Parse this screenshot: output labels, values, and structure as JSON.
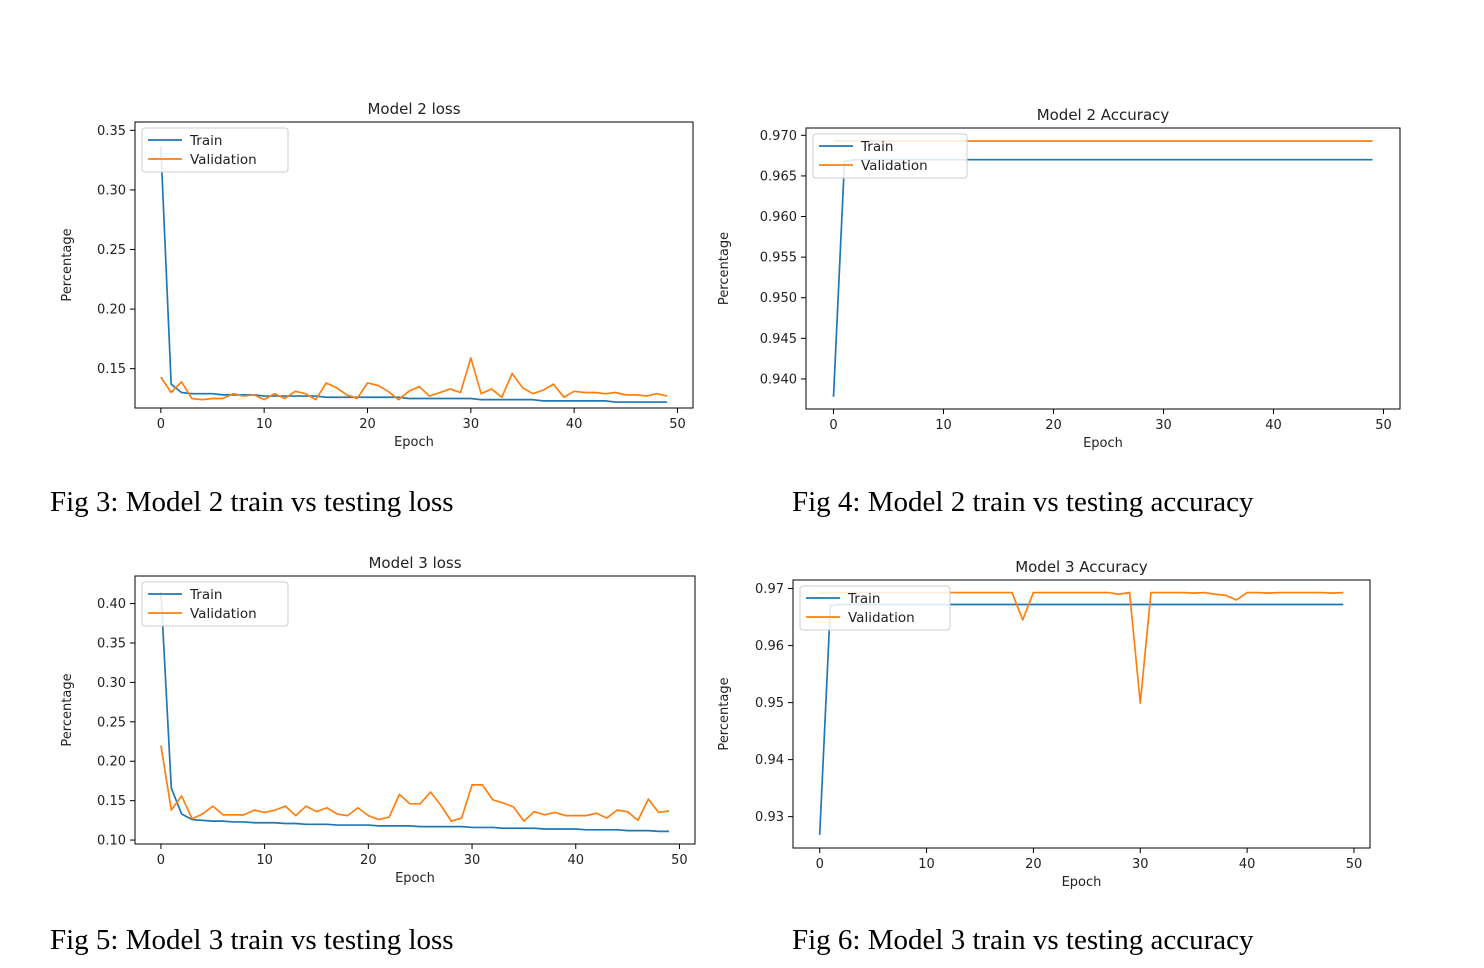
{
  "captions": {
    "fig3": "Fig 3: Model 2 train vs testing loss",
    "fig4": "Fig 4: Model 2 train vs testing accuracy",
    "fig5": "Fig 5: Model 3 train vs testing loss",
    "fig6": "Fig 6: Model 3 train vs testing accuracy"
  },
  "chart_data": [
    {
      "type": "line",
      "title": "Model 2 loss",
      "xlabel": "Epoch",
      "ylabel": "Percentage",
      "xlim": [
        -2.5,
        51.5
      ],
      "ylim": [
        0.117,
        0.357
      ],
      "xticks": [
        0,
        10,
        20,
        30,
        40,
        50
      ],
      "yticks": [
        0.15,
        0.2,
        0.25,
        0.3,
        0.35
      ],
      "ytick_labels": [
        "0.15",
        "0.20",
        "0.25",
        "0.30",
        "0.35"
      ],
      "legend": "upper-left",
      "grid": false,
      "colors": [
        "#1f77b4",
        "#ff7f0e"
      ],
      "series": [
        {
          "name": "Train",
          "values": [
            0.336,
            0.137,
            0.13,
            0.129,
            0.129,
            0.129,
            0.128,
            0.128,
            0.128,
            0.128,
            0.127,
            0.127,
            0.127,
            0.127,
            0.127,
            0.127,
            0.126,
            0.126,
            0.126,
            0.126,
            0.126,
            0.126,
            0.126,
            0.126,
            0.125,
            0.125,
            0.125,
            0.125,
            0.125,
            0.125,
            0.125,
            0.124,
            0.124,
            0.124,
            0.124,
            0.124,
            0.124,
            0.123,
            0.123,
            0.123,
            0.123,
            0.123,
            0.123,
            0.123,
            0.122,
            0.122,
            0.122,
            0.122,
            0.122,
            0.122
          ]
        },
        {
          "name": "Validation",
          "values": [
            0.143,
            0.13,
            0.139,
            0.125,
            0.124,
            0.125,
            0.125,
            0.129,
            0.127,
            0.128,
            0.124,
            0.129,
            0.125,
            0.131,
            0.129,
            0.124,
            0.138,
            0.134,
            0.128,
            0.125,
            0.138,
            0.136,
            0.131,
            0.124,
            0.131,
            0.135,
            0.127,
            0.13,
            0.133,
            0.13,
            0.159,
            0.129,
            0.133,
            0.126,
            0.146,
            0.134,
            0.129,
            0.132,
            0.137,
            0.126,
            0.131,
            0.13,
            0.13,
            0.129,
            0.13,
            0.128,
            0.128,
            0.127,
            0.129,
            0.127
          ]
        }
      ]
    },
    {
      "type": "line",
      "title": "Model 2 Accuracy",
      "xlabel": "Epoch",
      "ylabel": "Percentage",
      "xlim": [
        -2.5,
        51.5
      ],
      "ylim": [
        0.9363,
        0.9709
      ],
      "xticks": [
        0,
        10,
        20,
        30,
        40,
        50
      ],
      "yticks": [
        0.94,
        0.945,
        0.95,
        0.955,
        0.96,
        0.965,
        0.97
      ],
      "ytick_labels": [
        "0.940",
        "0.945",
        "0.950",
        "0.955",
        "0.960",
        "0.965",
        "0.970"
      ],
      "legend": "upper-left",
      "grid": false,
      "colors": [
        "#1f77b4",
        "#ff7f0e"
      ],
      "series": [
        {
          "name": "Train",
          "values": [
            0.9378,
            0.9668,
            0.967,
            0.967,
            0.967,
            0.967,
            0.967,
            0.967,
            0.967,
            0.967,
            0.967,
            0.967,
            0.967,
            0.967,
            0.967,
            0.967,
            0.967,
            0.967,
            0.967,
            0.967,
            0.967,
            0.967,
            0.967,
            0.967,
            0.967,
            0.967,
            0.967,
            0.967,
            0.967,
            0.967,
            0.967,
            0.967,
            0.967,
            0.967,
            0.967,
            0.967,
            0.967,
            0.967,
            0.967,
            0.967,
            0.967,
            0.967,
            0.967,
            0.967,
            0.967,
            0.967,
            0.967,
            0.967,
            0.967,
            0.967
          ]
        },
        {
          "name": "Validation",
          "values": [
            0.9693,
            0.9693,
            0.9693,
            0.9693,
            0.9693,
            0.9693,
            0.9693,
            0.9693,
            0.9693,
            0.9693,
            0.9693,
            0.9693,
            0.9693,
            0.9693,
            0.9693,
            0.9693,
            0.9693,
            0.9693,
            0.9693,
            0.9693,
            0.9693,
            0.9693,
            0.9693,
            0.9693,
            0.9693,
            0.9693,
            0.9693,
            0.9693,
            0.9693,
            0.9693,
            0.9693,
            0.9693,
            0.9693,
            0.9693,
            0.9693,
            0.9693,
            0.9693,
            0.9693,
            0.9693,
            0.9693,
            0.9693,
            0.9693,
            0.9693,
            0.9693,
            0.9693,
            0.9693,
            0.9693,
            0.9693,
            0.9693,
            0.9693
          ]
        }
      ]
    },
    {
      "type": "line",
      "title": "Model 3 loss",
      "xlabel": "Epoch",
      "ylabel": "Percentage",
      "xlim": [
        -2.5,
        51.5
      ],
      "ylim": [
        0.095,
        0.435
      ],
      "xticks": [
        0,
        10,
        20,
        30,
        40,
        50
      ],
      "yticks": [
        0.1,
        0.15,
        0.2,
        0.25,
        0.3,
        0.35,
        0.4
      ],
      "ytick_labels": [
        "0.10",
        "0.15",
        "0.20",
        "0.25",
        "0.30",
        "0.35",
        "0.40"
      ],
      "legend": "upper-left",
      "grid": false,
      "colors": [
        "#1f77b4",
        "#ff7f0e"
      ],
      "series": [
        {
          "name": "Train",
          "values": [
            0.415,
            0.166,
            0.133,
            0.126,
            0.125,
            0.124,
            0.124,
            0.123,
            0.123,
            0.122,
            0.122,
            0.122,
            0.121,
            0.121,
            0.12,
            0.12,
            0.12,
            0.119,
            0.119,
            0.119,
            0.119,
            0.118,
            0.118,
            0.118,
            0.118,
            0.117,
            0.117,
            0.117,
            0.117,
            0.117,
            0.116,
            0.116,
            0.116,
            0.115,
            0.115,
            0.115,
            0.115,
            0.114,
            0.114,
            0.114,
            0.114,
            0.113,
            0.113,
            0.113,
            0.113,
            0.112,
            0.112,
            0.112,
            0.111,
            0.111
          ]
        },
        {
          "name": "Validation",
          "values": [
            0.22,
            0.138,
            0.156,
            0.127,
            0.133,
            0.143,
            0.132,
            0.132,
            0.132,
            0.138,
            0.135,
            0.138,
            0.143,
            0.131,
            0.143,
            0.136,
            0.141,
            0.133,
            0.131,
            0.141,
            0.131,
            0.126,
            0.129,
            0.158,
            0.146,
            0.146,
            0.161,
            0.144,
            0.124,
            0.128,
            0.17,
            0.17,
            0.151,
            0.147,
            0.142,
            0.124,
            0.136,
            0.132,
            0.135,
            0.131,
            0.131,
            0.131,
            0.134,
            0.128,
            0.138,
            0.136,
            0.125,
            0.152,
            0.135,
            0.137
          ]
        }
      ]
    },
    {
      "type": "line",
      "title": "Model 3 Accuracy",
      "xlabel": "Epoch",
      "ylabel": "Percentage",
      "xlim": [
        -2.5,
        51.5
      ],
      "ylim": [
        0.9245,
        0.9715
      ],
      "xticks": [
        0,
        10,
        20,
        30,
        40,
        50
      ],
      "yticks": [
        0.93,
        0.94,
        0.95,
        0.96,
        0.97
      ],
      "ytick_labels": [
        "0.93",
        "0.94",
        "0.95",
        "0.96",
        "0.97"
      ],
      "legend": "upper-left",
      "grid": false,
      "colors": [
        "#1f77b4",
        "#ff7f0e"
      ],
      "series": [
        {
          "name": "Train",
          "values": [
            0.9268,
            0.967,
            0.9672,
            0.9672,
            0.9672,
            0.9672,
            0.9672,
            0.9672,
            0.9672,
            0.9672,
            0.9672,
            0.9672,
            0.9672,
            0.9672,
            0.9672,
            0.9672,
            0.9672,
            0.9672,
            0.9672,
            0.9672,
            0.9672,
            0.9672,
            0.9672,
            0.9672,
            0.9672,
            0.9672,
            0.9672,
            0.9672,
            0.9672,
            0.9672,
            0.9672,
            0.9672,
            0.9672,
            0.9672,
            0.9672,
            0.9672,
            0.9672,
            0.9672,
            0.9672,
            0.9672,
            0.9672,
            0.9672,
            0.9672,
            0.9672,
            0.9672,
            0.9672,
            0.9672,
            0.9672,
            0.9672,
            0.9672
          ]
        },
        {
          "name": "Validation",
          "values": [
            0.9693,
            0.9693,
            0.9693,
            0.9693,
            0.9693,
            0.9693,
            0.9693,
            0.9693,
            0.9693,
            0.9693,
            0.9693,
            0.9693,
            0.9693,
            0.9693,
            0.9693,
            0.9693,
            0.9693,
            0.9693,
            0.9693,
            0.9645,
            0.9693,
            0.9693,
            0.9693,
            0.9693,
            0.9693,
            0.9693,
            0.9693,
            0.9693,
            0.969,
            0.9693,
            0.9499,
            0.9693,
            0.9693,
            0.9693,
            0.9693,
            0.9692,
            0.9693,
            0.969,
            0.9688,
            0.968,
            0.9693,
            0.9693,
            0.9692,
            0.9693,
            0.9693,
            0.9693,
            0.9693,
            0.9693,
            0.9692,
            0.9693
          ]
        }
      ]
    }
  ]
}
